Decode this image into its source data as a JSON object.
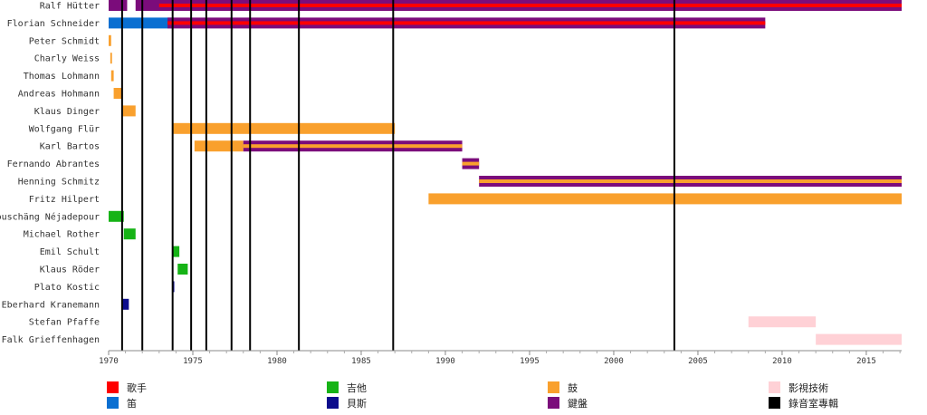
{
  "chart_data": {
    "type": "timeline",
    "title": "",
    "xlabel": "",
    "ylabel": "",
    "xlim": [
      1970,
      2017.1
    ],
    "x_ticks": [
      "1970",
      "1975",
      "1980",
      "1985",
      "1990",
      "1995",
      "2000",
      "2005",
      "2010",
      "2015"
    ],
    "colors": {
      "vocals": "#ff0000",
      "flute": "#0a6fd1",
      "drums": "#f9a02d",
      "keyboards": "#7b0c7b",
      "guitar": "#16b316",
      "bass": "#0c0c8c",
      "visuals": "#ffd1d6",
      "studio": "#000000"
    },
    "legend": [
      {
        "key": "vocals",
        "label": "歌手"
      },
      {
        "key": "flute",
        "label": "笛"
      },
      {
        "key": "guitar",
        "label": "吉他"
      },
      {
        "key": "bass",
        "label": "貝斯"
      },
      {
        "key": "drums",
        "label": "鼓"
      },
      {
        "key": "keyboards",
        "label": "鍵盤"
      },
      {
        "key": "visuals",
        "label": "影視技術"
      },
      {
        "key": "studio",
        "label": "錄音室專輯"
      }
    ],
    "albums": [
      1970.8,
      1972.0,
      1973.8,
      1974.9,
      1975.8,
      1977.3,
      1978.4,
      1981.3,
      1986.9,
      2003.6
    ],
    "members": [
      {
        "name": "Ralf Hütter",
        "bars": [
          {
            "role": "keyboards",
            "start": 1970.0,
            "end": 1971.1
          },
          {
            "role": "keyboards",
            "start": 1971.6,
            "end": 2017.1
          },
          {
            "role": "vocals",
            "start": 1973.0,
            "end": 2017.1,
            "stripe": true
          }
        ]
      },
      {
        "name": "Florian Schneider",
        "bars": [
          {
            "role": "flute",
            "start": 1970.0,
            "end": 1973.9
          },
          {
            "role": "keyboards",
            "start": 1973.5,
            "end": 2009.0
          },
          {
            "role": "vocals",
            "start": 1973.5,
            "end": 2009.0,
            "stripe": true
          }
        ]
      },
      {
        "name": "Peter Schmidt",
        "bars": [
          {
            "role": "drums",
            "start": 1970.0,
            "end": 1970.15
          }
        ]
      },
      {
        "name": "Charly Weiss",
        "bars": [
          {
            "role": "drums",
            "start": 1970.1,
            "end": 1970.2
          }
        ]
      },
      {
        "name": "Thomas Lohmann",
        "bars": [
          {
            "role": "drums",
            "start": 1970.15,
            "end": 1970.3
          }
        ]
      },
      {
        "name": "Andreas Hohmann",
        "bars": [
          {
            "role": "drums",
            "start": 1970.3,
            "end": 1970.8
          }
        ]
      },
      {
        "name": "Klaus Dinger",
        "bars": [
          {
            "role": "drums",
            "start": 1970.8,
            "end": 1971.6
          }
        ]
      },
      {
        "name": "Wolfgang Flür",
        "bars": [
          {
            "role": "drums",
            "start": 1973.8,
            "end": 1987.0
          }
        ]
      },
      {
        "name": "Karl Bartos",
        "bars": [
          {
            "role": "drums",
            "start": 1975.1,
            "end": 1978.0
          },
          {
            "role": "keyboards",
            "start": 1978.0,
            "end": 1991.0
          },
          {
            "role": "drums",
            "start": 1978.0,
            "end": 1991.0,
            "stripe": true
          }
        ]
      },
      {
        "name": "Fernando Abrantes",
        "bars": [
          {
            "role": "keyboards",
            "start": 1991.0,
            "end": 1992.0
          },
          {
            "role": "drums",
            "start": 1991.0,
            "end": 1992.0,
            "stripe": true
          }
        ]
      },
      {
        "name": "Henning Schmitz",
        "bars": [
          {
            "role": "keyboards",
            "start": 1992.0,
            "end": 2017.1
          },
          {
            "role": "drums",
            "start": 1992.0,
            "end": 2017.1,
            "stripe": true
          }
        ]
      },
      {
        "name": "Fritz Hilpert",
        "bars": [
          {
            "role": "drums",
            "start": 1989.0,
            "end": 2017.1
          }
        ]
      },
      {
        "name": "Houschäng Néjadepour",
        "bars": [
          {
            "role": "guitar",
            "start": 1970.0,
            "end": 1970.9
          }
        ]
      },
      {
        "name": "Michael Rother",
        "bars": [
          {
            "role": "guitar",
            "start": 1970.9,
            "end": 1971.6
          }
        ]
      },
      {
        "name": "Emil Schult",
        "bars": [
          {
            "role": "guitar",
            "start": 1973.8,
            "end": 1974.2
          }
        ]
      },
      {
        "name": "Klaus Röder",
        "bars": [
          {
            "role": "guitar",
            "start": 1974.1,
            "end": 1974.7
          }
        ]
      },
      {
        "name": "Plato Kostic",
        "bars": [
          {
            "role": "bass",
            "start": 1973.8,
            "end": 1973.9
          }
        ]
      },
      {
        "name": "Eberhard Kranemann",
        "bars": [
          {
            "role": "bass",
            "start": 1970.8,
            "end": 1971.2
          }
        ]
      },
      {
        "name": "Stefan Pfaffe",
        "bars": [
          {
            "role": "visuals",
            "start": 2008.0,
            "end": 2012.0
          }
        ]
      },
      {
        "name": "Falk Grieffenhagen",
        "bars": [
          {
            "role": "visuals",
            "start": 2012.0,
            "end": 2017.1
          }
        ]
      }
    ]
  }
}
